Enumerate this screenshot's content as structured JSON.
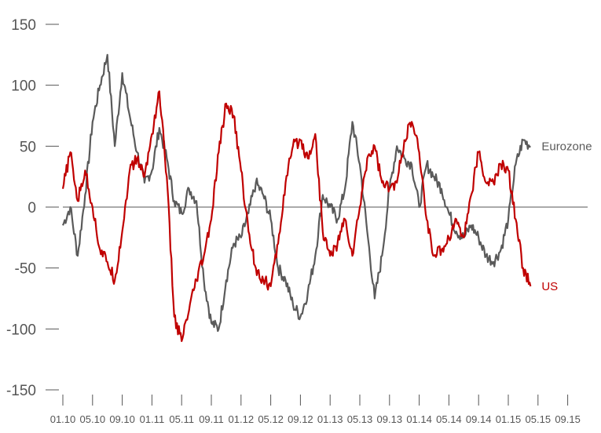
{
  "chart_data": {
    "type": "line",
    "title": "",
    "xlabel": "",
    "ylabel": "",
    "ylim": [
      -150,
      150
    ],
    "yticks": [
      150,
      100,
      50,
      0,
      -50,
      -100,
      -150
    ],
    "ytick_labels": [
      "150",
      "100",
      "50",
      "0",
      "-50",
      "-100",
      "-150"
    ],
    "xticks": [
      "01.10",
      "05.10",
      "09.10",
      "01.11",
      "05.11",
      "09.11",
      "01.12",
      "05.12",
      "09.12",
      "01.13",
      "05.13",
      "09.13",
      "01.14",
      "05.14",
      "09.14",
      "01.15",
      "05.15",
      "09.15"
    ],
    "zero_line": true,
    "grid": false,
    "legend": "inline labels at series ends",
    "series": [
      {
        "name": "Eurozone",
        "color": "#5a5a5a",
        "x": [
          "01.10",
          "02.10",
          "03.10",
          "04.10",
          "05.10",
          "06.10",
          "07.10",
          "08.10",
          "09.10",
          "10.10",
          "11.10",
          "12.10",
          "01.11",
          "02.11",
          "03.11",
          "04.11",
          "05.11",
          "06.11",
          "07.11",
          "08.11",
          "09.11",
          "10.11",
          "11.11",
          "12.11",
          "01.12",
          "02.12",
          "03.12",
          "04.12",
          "05.12",
          "06.12",
          "07.12",
          "08.12",
          "09.12",
          "10.12",
          "11.12",
          "12.12",
          "01.13",
          "02.13",
          "03.13",
          "04.13",
          "05.13",
          "06.13",
          "07.13",
          "08.13",
          "09.13",
          "10.13",
          "11.13",
          "12.13",
          "01.14",
          "02.14",
          "03.14",
          "04.14",
          "05.14",
          "06.14",
          "07.14",
          "08.14",
          "09.14",
          "10.14",
          "11.14",
          "12.14",
          "01.15",
          "02.15",
          "03.15",
          "04.15"
        ],
        "values": [
          -15,
          0,
          -40,
          10,
          70,
          100,
          125,
          50,
          110,
          75,
          45,
          20,
          30,
          65,
          40,
          5,
          -5,
          15,
          5,
          -60,
          -95,
          -100,
          -60,
          -30,
          -25,
          -5,
          20,
          10,
          -10,
          -50,
          -60,
          -80,
          -90,
          -70,
          -40,
          10,
          0,
          -10,
          15,
          70,
          35,
          -20,
          -75,
          -40,
          15,
          50,
          40,
          35,
          0,
          35,
          25,
          15,
          -5,
          -20,
          -25,
          -15,
          -25,
          -40,
          -45,
          -35,
          -10,
          35,
          55,
          50
        ]
      },
      {
        "name": "US",
        "color": "#c00000",
        "x": [
          "01.10",
          "02.10",
          "03.10",
          "04.10",
          "05.10",
          "06.10",
          "07.10",
          "08.10",
          "09.10",
          "10.10",
          "11.10",
          "12.10",
          "01.11",
          "02.11",
          "03.11",
          "04.11",
          "05.11",
          "06.11",
          "07.11",
          "08.11",
          "09.11",
          "10.11",
          "11.11",
          "12.11",
          "01.12",
          "02.12",
          "03.12",
          "04.12",
          "05.12",
          "06.12",
          "07.12",
          "08.12",
          "09.12",
          "10.12",
          "11.12",
          "12.12",
          "01.13",
          "02.13",
          "03.13",
          "04.13",
          "05.13",
          "06.13",
          "07.13",
          "08.13",
          "09.13",
          "10.13",
          "11.13",
          "12.13",
          "01.14",
          "02.14",
          "03.14",
          "04.14",
          "05.14",
          "06.14",
          "07.14",
          "08.14",
          "09.14",
          "10.14",
          "11.14",
          "12.14",
          "01.15",
          "02.15",
          "03.15",
          "04.15"
        ],
        "values": [
          15,
          45,
          5,
          30,
          0,
          -35,
          -45,
          -60,
          -20,
          30,
          40,
          25,
          60,
          95,
          25,
          -90,
          -110,
          -85,
          -60,
          -40,
          -10,
          45,
          85,
          75,
          30,
          -20,
          -50,
          -60,
          -65,
          -30,
          20,
          50,
          55,
          40,
          60,
          -20,
          -40,
          -30,
          -10,
          -40,
          0,
          40,
          50,
          20,
          15,
          20,
          55,
          70,
          45,
          -10,
          -40,
          -35,
          -25,
          -10,
          -25,
          10,
          45,
          20,
          20,
          35,
          30,
          -10,
          -50,
          -65
        ]
      }
    ]
  }
}
